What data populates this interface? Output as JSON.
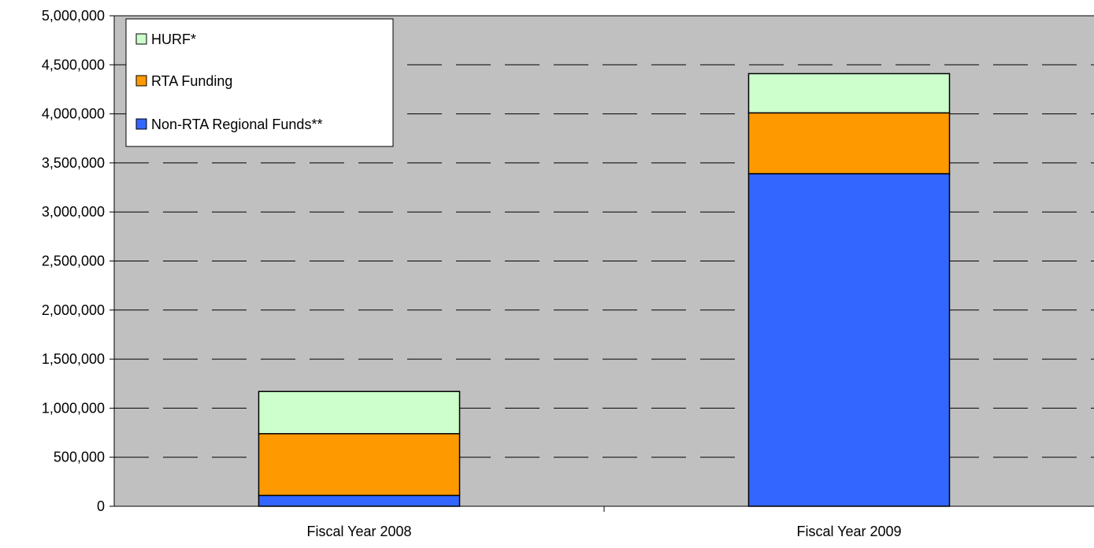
{
  "chart_data": {
    "type": "bar",
    "stacked": true,
    "title": "",
    "xlabel": "",
    "ylabel": "",
    "categories": [
      "Fiscal Year  2008",
      "Fiscal Year 2009"
    ],
    "series": [
      {
        "name": "Non-RTA Regional Funds**",
        "values": [
          110000,
          3390000
        ],
        "color": "#3366FF"
      },
      {
        "name": "RTA Funding",
        "values": [
          630000,
          620000
        ],
        "color": "#FF9900"
      },
      {
        "name": "HURF*",
        "values": [
          430000,
          400000
        ],
        "color": "#CCFFCC"
      }
    ],
    "ylim": [
      0,
      5000000
    ],
    "yticks": [
      0,
      500000,
      1000000,
      1500000,
      2000000,
      2500000,
      3000000,
      3500000,
      4000000,
      4500000,
      5000000
    ],
    "ytick_labels": [
      "0",
      "500,000",
      "1,000,000",
      "1,500,000",
      "2,000,000",
      "2,500,000",
      "3,000,000",
      "3,500,000",
      "4,000,000",
      "4,500,000",
      "5,000,000"
    ],
    "grid": "horizontal dashed",
    "plot_background": "#C0C0C0",
    "legend": {
      "position": "top-left",
      "entries": [
        "HURF*",
        "RTA Funding",
        "Non-RTA Regional Funds**"
      ]
    }
  }
}
